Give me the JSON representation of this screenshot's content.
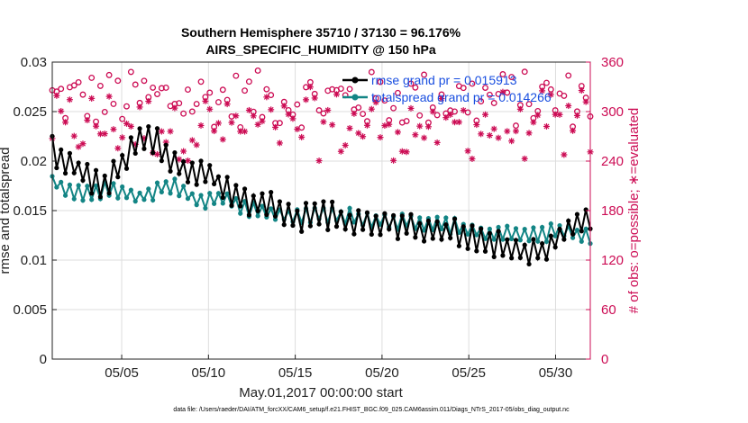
{
  "chart_data": {
    "type": "line",
    "title": "Southern Hemisphere 35710 / 37130 = 96.176%",
    "subtitle": "AIRS_SPECIFIC_HUMIDITY @ 150 hPa",
    "xlabel": "May.01,2017 00:00:00 start",
    "ylabel": "rmse and totalspread",
    "ylabel_right": "# of obs: o=possible; ∗=evaluated",
    "xlim": [
      1,
      32
    ],
    "ylim": [
      0,
      0.03
    ],
    "ylim_right": [
      0,
      360
    ],
    "x_ticks": [
      5,
      10,
      15,
      20,
      25,
      30
    ],
    "x_tick_labels": [
      "05/05",
      "05/10",
      "05/15",
      "05/20",
      "05/25",
      "05/30"
    ],
    "y_ticks": [
      0,
      0.005,
      0.01,
      0.015,
      0.02,
      0.025,
      0.03
    ],
    "y_tick_labels": [
      "0",
      "0.005",
      "0.01",
      "0.015",
      "0.02",
      "0.025",
      "0.03"
    ],
    "y_ticks_right": [
      0,
      60,
      120,
      180,
      240,
      300,
      360
    ],
    "grid": true,
    "legend_position": "top-right",
    "colors": {
      "rmse": "#000000",
      "spread": "#138585",
      "obs": "#cc0c54",
      "axis_right": "#cc0c54",
      "legend_text": "#1a4fe0"
    },
    "anchors": {
      "rmse": [
        [
          1,
          0.0212
        ],
        [
          2,
          0.0196
        ],
        [
          3,
          0.0185
        ],
        [
          4,
          0.0175
        ],
        [
          5,
          0.02
        ],
        [
          6,
          0.0225
        ],
        [
          7,
          0.022
        ],
        [
          8,
          0.0196
        ],
        [
          9,
          0.019
        ],
        [
          10,
          0.0188
        ],
        [
          11,
          0.0172
        ],
        [
          12,
          0.0158
        ],
        [
          13,
          0.016
        ],
        [
          14,
          0.015
        ],
        [
          15,
          0.014
        ],
        [
          16,
          0.0148
        ],
        [
          17,
          0.0145
        ],
        [
          18,
          0.014
        ],
        [
          19,
          0.0136
        ],
        [
          20,
          0.014
        ],
        [
          21,
          0.0136
        ],
        [
          22,
          0.013
        ],
        [
          23,
          0.0132
        ],
        [
          24,
          0.0128
        ],
        [
          25,
          0.0122
        ],
        [
          26,
          0.0115
        ],
        [
          27,
          0.0114
        ],
        [
          28,
          0.011
        ],
        [
          29,
          0.0108
        ],
        [
          30,
          0.0122
        ],
        [
          31,
          0.0132
        ],
        [
          32,
          0.014
        ]
      ],
      "spread": [
        [
          1,
          0.018
        ],
        [
          2,
          0.017
        ],
        [
          3,
          0.0168
        ],
        [
          4,
          0.017
        ],
        [
          5,
          0.0168
        ],
        [
          6,
          0.0164
        ],
        [
          7,
          0.017
        ],
        [
          8,
          0.0176
        ],
        [
          9,
          0.0164
        ],
        [
          10,
          0.016
        ],
        [
          11,
          0.0162
        ],
        [
          12,
          0.0152
        ],
        [
          13,
          0.015
        ],
        [
          14,
          0.0146
        ],
        [
          15,
          0.0145
        ],
        [
          16,
          0.0146
        ],
        [
          17,
          0.0147
        ],
        [
          18,
          0.0145
        ],
        [
          19,
          0.0142
        ],
        [
          20,
          0.014
        ],
        [
          21,
          0.0138
        ],
        [
          22,
          0.0138
        ],
        [
          23,
          0.0136
        ],
        [
          24,
          0.0134
        ],
        [
          25,
          0.0132
        ],
        [
          26,
          0.0128
        ],
        [
          27,
          0.0128
        ],
        [
          28,
          0.0126
        ],
        [
          29,
          0.0124
        ],
        [
          30,
          0.013
        ],
        [
          31,
          0.0126
        ],
        [
          32,
          0.0122
        ]
      ]
    },
    "series": [
      {
        "name": "rmse grand pr = 0.015913",
        "axis": "left",
        "marker": "filled-circle",
        "n_points": 124
      },
      {
        "name": "totalspread grand pr = 0.014266",
        "axis": "left",
        "marker": "filled-circle",
        "n_points": 124
      },
      {
        "name": "possible",
        "axis": "right",
        "marker": "circle",
        "values_range": [
          280,
          350
        ]
      },
      {
        "name": "evaluated",
        "axis": "right",
        "marker": "asterisk",
        "values_range": [
          240,
          330
        ]
      }
    ],
    "note": "data file: /Users/raeder/DAI/ATM_forcXX/CAM6_setup/f.e21.FHIST_BGC.f09_025.CAM6assim.011/Diags_NTrS_2017-05/obs_diag_output.nc"
  }
}
